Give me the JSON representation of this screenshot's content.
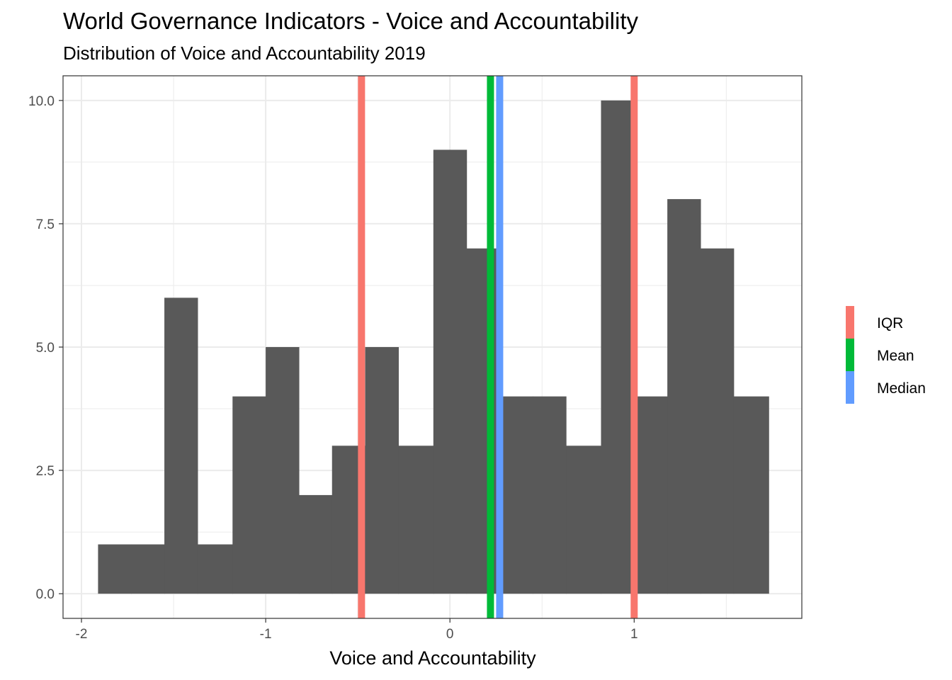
{
  "chart_data": {
    "type": "bar",
    "title": "World Governance Indicators - Voice and Accountability",
    "subtitle": "Distribution of Voice and Accountability 2019",
    "xlabel": "Voice and Accountability",
    "ylabel": "",
    "xlim": [
      -2.1,
      1.91
    ],
    "ylim": [
      -0.5,
      10.5
    ],
    "x_ticks": [
      -2,
      -1,
      0,
      1
    ],
    "x_tick_labels": [
      "-2",
      "-1",
      "0",
      "1"
    ],
    "y_ticks": [
      0,
      2.5,
      5,
      7.5,
      10
    ],
    "y_tick_labels": [
      "0.0",
      "2.5",
      "5.0",
      "7.5",
      "10.0"
    ],
    "grid": true,
    "bar_color": "#595959",
    "bins": [
      {
        "x0": -1.91,
        "x1": -1.73,
        "count": 1
      },
      {
        "x0": -1.73,
        "x1": -1.55,
        "count": 1
      },
      {
        "x0": -1.55,
        "x1": -1.37,
        "count": 6
      },
      {
        "x0": -1.37,
        "x1": -1.18,
        "count": 1
      },
      {
        "x0": -1.18,
        "x1": -1.0,
        "count": 4
      },
      {
        "x0": -1.0,
        "x1": -0.82,
        "count": 5
      },
      {
        "x0": -0.82,
        "x1": -0.64,
        "count": 2
      },
      {
        "x0": -0.64,
        "x1": -0.46,
        "count": 3
      },
      {
        "x0": -0.46,
        "x1": -0.28,
        "count": 5
      },
      {
        "x0": -0.28,
        "x1": -0.09,
        "count": 3
      },
      {
        "x0": -0.09,
        "x1": 0.09,
        "count": 9
      },
      {
        "x0": 0.09,
        "x1": 0.27,
        "count": 7
      },
      {
        "x0": 0.27,
        "x1": 0.45,
        "count": 4
      },
      {
        "x0": 0.45,
        "x1": 0.63,
        "count": 4
      },
      {
        "x0": 0.63,
        "x1": 0.82,
        "count": 3
      },
      {
        "x0": 0.82,
        "x1": 1.0,
        "count": 10
      },
      {
        "x0": 1.0,
        "x1": 1.18,
        "count": 4
      },
      {
        "x0": 1.18,
        "x1": 1.36,
        "count": 8
      },
      {
        "x0": 1.36,
        "x1": 1.54,
        "count": 7
      },
      {
        "x0": 1.54,
        "x1": 1.73,
        "count": 4
      }
    ],
    "reference_lines": [
      {
        "series": "IQR",
        "x": -0.48,
        "color": "#F8766D"
      },
      {
        "series": "IQR",
        "x": 1.0,
        "color": "#F8766D"
      },
      {
        "series": "Mean",
        "x": 0.22,
        "color": "#00BA38"
      },
      {
        "series": "Median",
        "x": 0.27,
        "color": "#619CFF"
      }
    ],
    "legend": {
      "placement": "right",
      "items": [
        {
          "label": "IQR",
          "color": "#F8766D"
        },
        {
          "label": "Mean",
          "color": "#00BA38"
        },
        {
          "label": "Median",
          "color": "#619CFF"
        }
      ]
    }
  }
}
